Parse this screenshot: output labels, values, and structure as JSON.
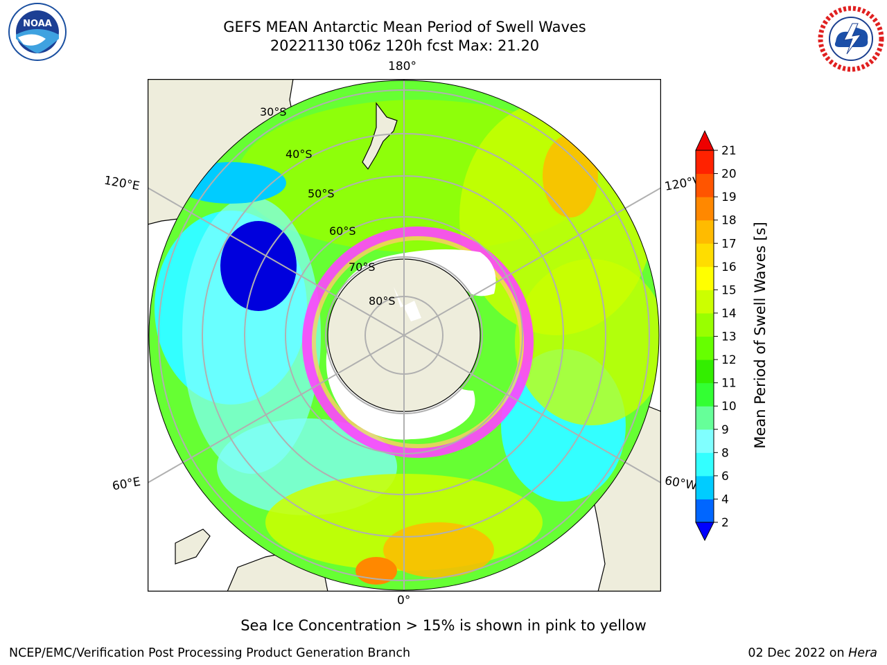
{
  "title": {
    "line1": "GEFS MEAN Antarctic Mean Period of Swell Waves",
    "line2": "20221130 t06z 120h fcst   Max: 21.20"
  },
  "logos": {
    "left": "noaa-logo",
    "right": "nws-logo"
  },
  "map": {
    "projection": "south-polar-stereographic",
    "longitude_labels": [
      "180°",
      "120°E",
      "120°W",
      "60°E",
      "60°W",
      "0°"
    ],
    "latitude_labels": [
      "30°S",
      "40°S",
      "50°S",
      "60°S",
      "70°S",
      "80°S"
    ]
  },
  "colorbar": {
    "label": "Mean Period of Swell Waves [s]",
    "ticks": [
      "2",
      "4",
      "6",
      "8",
      "9",
      "10",
      "11",
      "12",
      "13",
      "14",
      "15",
      "16",
      "17",
      "18",
      "19",
      "20",
      "21"
    ],
    "colors": [
      "#0000ff",
      "#0066ff",
      "#00ccff",
      "#33ffff",
      "#80ffff",
      "#66ff99",
      "#33ff33",
      "#33ee00",
      "#66ff00",
      "#99ff00",
      "#ccff00",
      "#ffff00",
      "#ffdd00",
      "#ffbb00",
      "#ff8800",
      "#ff5500",
      "#ff2200",
      "#ee0000"
    ]
  },
  "footer": {
    "note": "Sea Ice Concentration > 15% is shown in pink to yellow",
    "credit_left": "NCEP/EMC/Verification Post Processing Product Generation Branch",
    "credit_date": "02 Dec 2022 on",
    "credit_host": "Hera"
  }
}
